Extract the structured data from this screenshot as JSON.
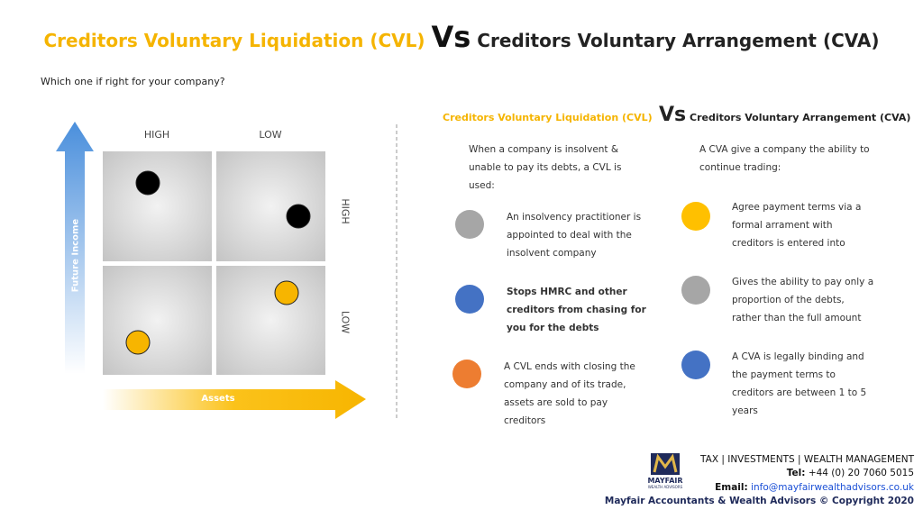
{
  "title": {
    "left": "Creditors Voluntary Liquidation (CVL)",
    "vs": "Vs",
    "right": "Creditors Voluntary Arrangement (CVA)"
  },
  "subtitle": "Which one if right for your company?",
  "matrix": {
    "top_labels": [
      "HIGH",
      "LOW"
    ],
    "side_labels": [
      "HIGH",
      "LOW"
    ],
    "y_label": "Future Income",
    "x_label": "Assets"
  },
  "comparison": {
    "heading": {
      "left": "Creditors Voluntary Liquidation (CVL)",
      "vs": "Vs",
      "right": "Creditors Voluntary Arrangement (CVA)"
    },
    "cvl": {
      "intro": "When a company is insolvent & unable to pay its debts, a CVL is used:",
      "items": [
        "An insolvency practitioner is appointed to deal with the insolvent company",
        "Stops HMRC and other creditors from chasing for you for the debts",
        "A CVL ends with closing the company and of its trade, assets are sold to pay creditors"
      ]
    },
    "cva": {
      "intro": "A CVA give a company the ability to continue trading:",
      "items": [
        "Agree payment terms via a formal arrament with creditors is entered into",
        "Gives the ability to pay only a proportion of the debts, rather than the full amount",
        "A CVA is legally binding and the payment terms to creditors are between 1 to 5 years"
      ]
    }
  },
  "footer": {
    "logo": "MAYFAIR",
    "logo_sub": "WEALTH ADVISORS",
    "services": "TAX | INVESTMENTS | WEALTH MANAGEMENT",
    "tel_label": "Tel:",
    "tel": "+44 (0) 20 7060 5015",
    "email_label": "Email:",
    "email": "info@mayfairwealthadvisors.co.uk",
    "copyright": "Mayfair Accountants & Wealth Advisors © Copyright 2020"
  }
}
